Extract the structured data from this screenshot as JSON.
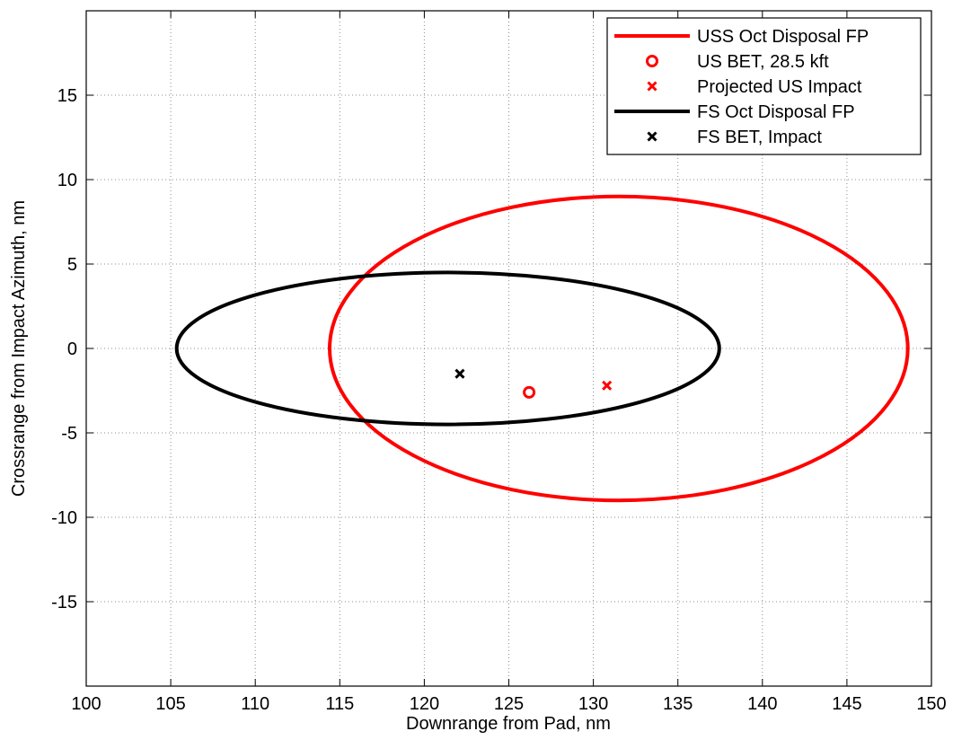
{
  "chart_data": {
    "type": "line",
    "title": "",
    "xlabel": "Downrange from Pad, nm",
    "ylabel": "Crossrange from Impact Azimuth, nm",
    "xlim": [
      100,
      150
    ],
    "ylim": [
      -20,
      20
    ],
    "xticks": [
      100,
      105,
      110,
      115,
      120,
      125,
      130,
      135,
      140,
      145,
      150
    ],
    "yticks": [
      -15,
      -10,
      -5,
      0,
      5,
      10,
      15
    ],
    "xtick_labels": [
      "100",
      "105",
      "110",
      "115",
      "120",
      "125",
      "130",
      "135",
      "140",
      "145",
      "150"
    ],
    "ytick_labels": [
      "-15",
      "-10",
      "-5",
      "0",
      "5",
      "10",
      "15"
    ],
    "grid": true,
    "legend_position": "top-right",
    "series": [
      {
        "name": "USS Oct Disposal FP",
        "kind": "ellipse",
        "color": "#ff0000",
        "center": [
          131.5,
          0
        ],
        "semi_axes": [
          17.1,
          9.0
        ]
      },
      {
        "name": "US BET, 28.5 kft",
        "kind": "point",
        "marker": "circle",
        "color": "#ff0000",
        "x": 126.2,
        "y": -2.6
      },
      {
        "name": "Projected US Impact",
        "kind": "point",
        "marker": "x",
        "color": "#ff0000",
        "x": 130.8,
        "y": -2.2
      },
      {
        "name": "FS Oct Disposal FP",
        "kind": "ellipse",
        "color": "#000000",
        "center": [
          121.4,
          0
        ],
        "semi_axes": [
          16.05,
          4.5
        ]
      },
      {
        "name": "FS BET, Impact",
        "kind": "point",
        "marker": "x",
        "color": "#000000",
        "x": 122.1,
        "y": -1.5
      }
    ]
  }
}
